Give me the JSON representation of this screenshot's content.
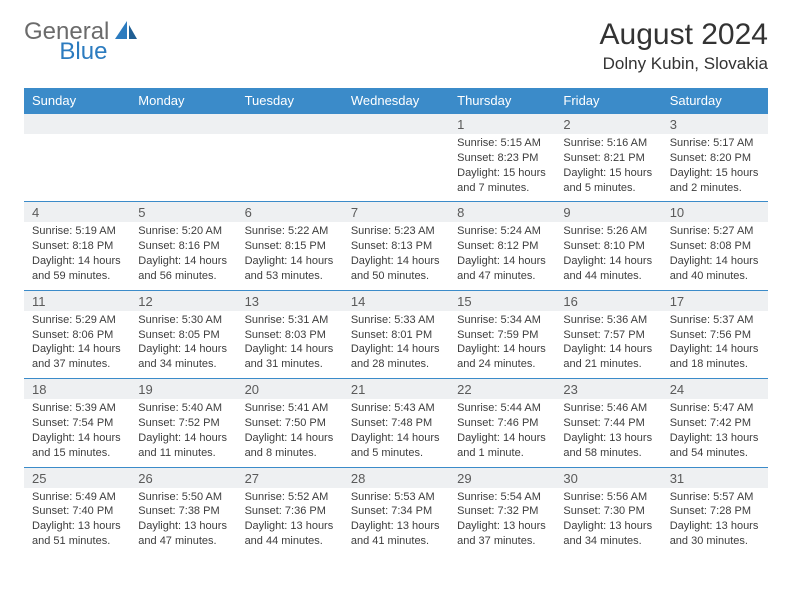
{
  "logo": {
    "general": "General",
    "blue": "Blue"
  },
  "header": {
    "month_title": "August 2024",
    "location": "Dolny Kubin, Slovakia"
  },
  "colors": {
    "header_bg": "#3b8bc9",
    "header_text": "#ffffff",
    "daynum_bg": "#eef0f2",
    "cell_border": "#3b8bc9",
    "logo_gray": "#6b6b6b",
    "logo_blue": "#2b7bbf",
    "title_color": "#333333",
    "body_text": "#3d3d3d"
  },
  "day_headers": [
    "Sunday",
    "Monday",
    "Tuesday",
    "Wednesday",
    "Thursday",
    "Friday",
    "Saturday"
  ],
  "weeks": [
    [
      {
        "daynum": "",
        "lines": []
      },
      {
        "daynum": "",
        "lines": []
      },
      {
        "daynum": "",
        "lines": []
      },
      {
        "daynum": "",
        "lines": []
      },
      {
        "daynum": "1",
        "lines": [
          "Sunrise: 5:15 AM",
          "Sunset: 8:23 PM",
          "Daylight: 15 hours and 7 minutes."
        ]
      },
      {
        "daynum": "2",
        "lines": [
          "Sunrise: 5:16 AM",
          "Sunset: 8:21 PM",
          "Daylight: 15 hours and 5 minutes."
        ]
      },
      {
        "daynum": "3",
        "lines": [
          "Sunrise: 5:17 AM",
          "Sunset: 8:20 PM",
          "Daylight: 15 hours and 2 minutes."
        ]
      }
    ],
    [
      {
        "daynum": "4",
        "lines": [
          "Sunrise: 5:19 AM",
          "Sunset: 8:18 PM",
          "Daylight: 14 hours and 59 minutes."
        ]
      },
      {
        "daynum": "5",
        "lines": [
          "Sunrise: 5:20 AM",
          "Sunset: 8:16 PM",
          "Daylight: 14 hours and 56 minutes."
        ]
      },
      {
        "daynum": "6",
        "lines": [
          "Sunrise: 5:22 AM",
          "Sunset: 8:15 PM",
          "Daylight: 14 hours and 53 minutes."
        ]
      },
      {
        "daynum": "7",
        "lines": [
          "Sunrise: 5:23 AM",
          "Sunset: 8:13 PM",
          "Daylight: 14 hours and 50 minutes."
        ]
      },
      {
        "daynum": "8",
        "lines": [
          "Sunrise: 5:24 AM",
          "Sunset: 8:12 PM",
          "Daylight: 14 hours and 47 minutes."
        ]
      },
      {
        "daynum": "9",
        "lines": [
          "Sunrise: 5:26 AM",
          "Sunset: 8:10 PM",
          "Daylight: 14 hours and 44 minutes."
        ]
      },
      {
        "daynum": "10",
        "lines": [
          "Sunrise: 5:27 AM",
          "Sunset: 8:08 PM",
          "Daylight: 14 hours and 40 minutes."
        ]
      }
    ],
    [
      {
        "daynum": "11",
        "lines": [
          "Sunrise: 5:29 AM",
          "Sunset: 8:06 PM",
          "Daylight: 14 hours and 37 minutes."
        ]
      },
      {
        "daynum": "12",
        "lines": [
          "Sunrise: 5:30 AM",
          "Sunset: 8:05 PM",
          "Daylight: 14 hours and 34 minutes."
        ]
      },
      {
        "daynum": "13",
        "lines": [
          "Sunrise: 5:31 AM",
          "Sunset: 8:03 PM",
          "Daylight: 14 hours and 31 minutes."
        ]
      },
      {
        "daynum": "14",
        "lines": [
          "Sunrise: 5:33 AM",
          "Sunset: 8:01 PM",
          "Daylight: 14 hours and 28 minutes."
        ]
      },
      {
        "daynum": "15",
        "lines": [
          "Sunrise: 5:34 AM",
          "Sunset: 7:59 PM",
          "Daylight: 14 hours and 24 minutes."
        ]
      },
      {
        "daynum": "16",
        "lines": [
          "Sunrise: 5:36 AM",
          "Sunset: 7:57 PM",
          "Daylight: 14 hours and 21 minutes."
        ]
      },
      {
        "daynum": "17",
        "lines": [
          "Sunrise: 5:37 AM",
          "Sunset: 7:56 PM",
          "Daylight: 14 hours and 18 minutes."
        ]
      }
    ],
    [
      {
        "daynum": "18",
        "lines": [
          "Sunrise: 5:39 AM",
          "Sunset: 7:54 PM",
          "Daylight: 14 hours and 15 minutes."
        ]
      },
      {
        "daynum": "19",
        "lines": [
          "Sunrise: 5:40 AM",
          "Sunset: 7:52 PM",
          "Daylight: 14 hours and 11 minutes."
        ]
      },
      {
        "daynum": "20",
        "lines": [
          "Sunrise: 5:41 AM",
          "Sunset: 7:50 PM",
          "Daylight: 14 hours and 8 minutes."
        ]
      },
      {
        "daynum": "21",
        "lines": [
          "Sunrise: 5:43 AM",
          "Sunset: 7:48 PM",
          "Daylight: 14 hours and 5 minutes."
        ]
      },
      {
        "daynum": "22",
        "lines": [
          "Sunrise: 5:44 AM",
          "Sunset: 7:46 PM",
          "Daylight: 14 hours and 1 minute."
        ]
      },
      {
        "daynum": "23",
        "lines": [
          "Sunrise: 5:46 AM",
          "Sunset: 7:44 PM",
          "Daylight: 13 hours and 58 minutes."
        ]
      },
      {
        "daynum": "24",
        "lines": [
          "Sunrise: 5:47 AM",
          "Sunset: 7:42 PM",
          "Daylight: 13 hours and 54 minutes."
        ]
      }
    ],
    [
      {
        "daynum": "25",
        "lines": [
          "Sunrise: 5:49 AM",
          "Sunset: 7:40 PM",
          "Daylight: 13 hours and 51 minutes."
        ]
      },
      {
        "daynum": "26",
        "lines": [
          "Sunrise: 5:50 AM",
          "Sunset: 7:38 PM",
          "Daylight: 13 hours and 47 minutes."
        ]
      },
      {
        "daynum": "27",
        "lines": [
          "Sunrise: 5:52 AM",
          "Sunset: 7:36 PM",
          "Daylight: 13 hours and 44 minutes."
        ]
      },
      {
        "daynum": "28",
        "lines": [
          "Sunrise: 5:53 AM",
          "Sunset: 7:34 PM",
          "Daylight: 13 hours and 41 minutes."
        ]
      },
      {
        "daynum": "29",
        "lines": [
          "Sunrise: 5:54 AM",
          "Sunset: 7:32 PM",
          "Daylight: 13 hours and 37 minutes."
        ]
      },
      {
        "daynum": "30",
        "lines": [
          "Sunrise: 5:56 AM",
          "Sunset: 7:30 PM",
          "Daylight: 13 hours and 34 minutes."
        ]
      },
      {
        "daynum": "31",
        "lines": [
          "Sunrise: 5:57 AM",
          "Sunset: 7:28 PM",
          "Daylight: 13 hours and 30 minutes."
        ]
      }
    ]
  ]
}
